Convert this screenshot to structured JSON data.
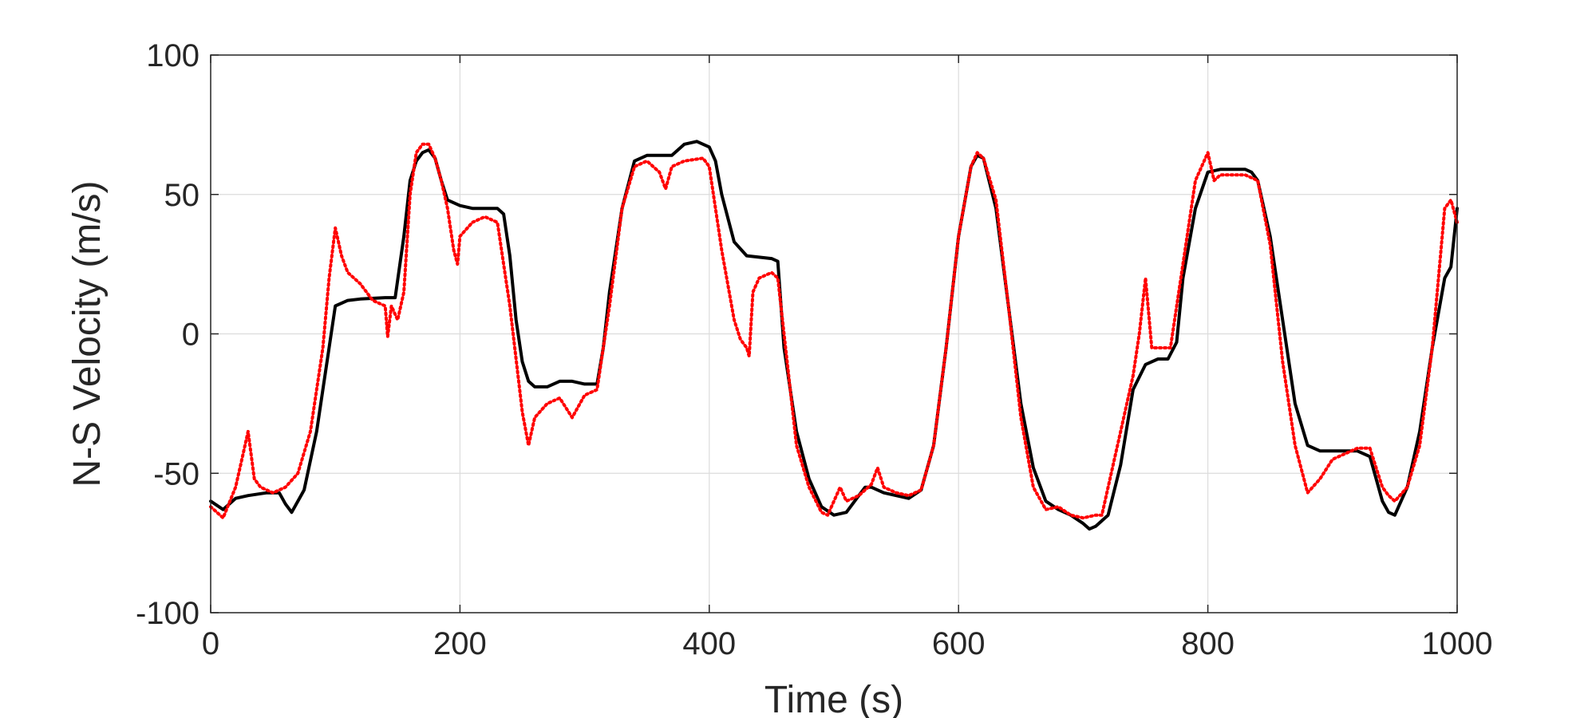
{
  "chart_data": {
    "type": "line",
    "xlabel": "Time (s)",
    "ylabel": "N-S Velocity (m/s)",
    "xlim": [
      0,
      1000
    ],
    "ylim": [
      -100,
      100
    ],
    "x_ticks": [
      0,
      200,
      400,
      600,
      800,
      1000
    ],
    "y_ticks": [
      -100,
      -50,
      0,
      50,
      100
    ],
    "x_tick_labels": [
      "0",
      "200",
      "400",
      "600",
      "800",
      "1000"
    ],
    "y_tick_labels": [
      "-100",
      "-50",
      "0",
      "50",
      "100"
    ],
    "grid": true,
    "legend": "none",
    "series": [
      {
        "style": "solid",
        "color": "#000000",
        "x": [
          0,
          10,
          20,
          30,
          45,
          55,
          60,
          65,
          75,
          85,
          95,
          100,
          110,
          120,
          140,
          148,
          155,
          160,
          165,
          170,
          175,
          180,
          185,
          190,
          200,
          210,
          230,
          235,
          240,
          245,
          250,
          255,
          260,
          270,
          280,
          290,
          300,
          310,
          315,
          320,
          330,
          340,
          350,
          360,
          370,
          380,
          390,
          400,
          405,
          410,
          420,
          430,
          450,
          455,
          460,
          470,
          480,
          490,
          500,
          510,
          520,
          525,
          530,
          540,
          550,
          560,
          570,
          580,
          590,
          600,
          610,
          615,
          620,
          630,
          640,
          650,
          660,
          670,
          680,
          690,
          700,
          705,
          710,
          720,
          730,
          740,
          750,
          760,
          768,
          775,
          780,
          790,
          800,
          810,
          830,
          835,
          840,
          850,
          860,
          870,
          880,
          890,
          920,
          925,
          930,
          935,
          940,
          945,
          950,
          960,
          970,
          980,
          990,
          995,
          1000
        ],
        "y": [
          -60,
          -63,
          -59,
          -58,
          -57,
          -57,
          -61,
          -64,
          -56,
          -35,
          -5,
          10,
          12,
          12.5,
          13,
          13,
          35,
          55,
          62,
          65,
          66,
          63,
          55,
          48,
          46,
          45,
          45,
          43,
          28,
          5,
          -10,
          -17,
          -19,
          -19,
          -17,
          -17,
          -18,
          -18,
          -5,
          15,
          45,
          62,
          64,
          64,
          64,
          68,
          69,
          67,
          62,
          50,
          33,
          28,
          27,
          26,
          -5,
          -35,
          -52,
          -62,
          -65,
          -64,
          -58,
          -55,
          -55,
          -57,
          -58,
          -59,
          -56,
          -40,
          -5,
          35,
          60,
          64,
          63,
          45,
          10,
          -25,
          -48,
          -60,
          -63,
          -65,
          -68,
          -70,
          -69,
          -65,
          -47,
          -20,
          -11,
          -9,
          -9,
          -3,
          20,
          45,
          58,
          59,
          59,
          58,
          55,
          35,
          5,
          -25,
          -40,
          -42,
          -42,
          -43,
          -44,
          -52,
          -60,
          -64,
          -65,
          -55,
          -35,
          -5,
          20,
          24,
          45
        ]
      },
      {
        "style": "dotted",
        "color": "#ff0000",
        "x": [
          0,
          10,
          20,
          25,
          30,
          35,
          40,
          50,
          60,
          70,
          80,
          90,
          95,
          100,
          105,
          110,
          120,
          130,
          140,
          142,
          145,
          150,
          155,
          160,
          165,
          170,
          175,
          180,
          185,
          190,
          195,
          198,
          200,
          210,
          220,
          230,
          240,
          250,
          255,
          260,
          270,
          280,
          290,
          300,
          310,
          320,
          330,
          340,
          350,
          360,
          365,
          370,
          380,
          395,
          400,
          405,
          410,
          420,
          425,
          430,
          432,
          435,
          440,
          450,
          455,
          460,
          470,
          480,
          490,
          495,
          500,
          505,
          510,
          520,
          530,
          535,
          540,
          550,
          560,
          570,
          580,
          590,
          600,
          610,
          615,
          620,
          630,
          640,
          650,
          660,
          670,
          680,
          690,
          700,
          710,
          715,
          720,
          730,
          740,
          745,
          750,
          755,
          760,
          765,
          770,
          780,
          790,
          800,
          805,
          810,
          820,
          830,
          840,
          850,
          860,
          870,
          880,
          890,
          900,
          910,
          920,
          925,
          930,
          935,
          940,
          945,
          950,
          960,
          970,
          980,
          985,
          990,
          995,
          1000
        ],
        "y": [
          -62,
          -66,
          -55,
          -45,
          -35,
          -52,
          -55,
          -57,
          -55,
          -50,
          -35,
          -5,
          20,
          38,
          28,
          22,
          18,
          12,
          10,
          -1,
          10,
          5,
          15,
          50,
          65,
          68,
          68,
          63,
          55,
          45,
          30,
          25,
          35,
          40,
          42,
          40,
          10,
          -28,
          -40,
          -30,
          -25,
          -23,
          -30,
          -22,
          -20,
          10,
          45,
          60,
          62,
          58,
          52,
          60,
          62,
          63,
          60,
          45,
          30,
          5,
          -2,
          -5,
          -8,
          15,
          20,
          22,
          20,
          0,
          -40,
          -55,
          -64,
          -65,
          -60,
          -55,
          -60,
          -58,
          -54,
          -48,
          -55,
          -57,
          -58,
          -56,
          -40,
          -5,
          35,
          60,
          65,
          63,
          48,
          10,
          -30,
          -55,
          -63,
          -62,
          -65,
          -66,
          -65,
          -65,
          -55,
          -35,
          -15,
          0,
          20,
          -5,
          -5,
          -5,
          -5,
          25,
          55,
          65,
          55,
          57,
          57,
          57,
          55,
          32,
          -10,
          -40,
          -57,
          -52,
          -45,
          -43,
          -41,
          -41,
          -41,
          -48,
          -55,
          -58,
          -60,
          -55,
          -40,
          -5,
          20,
          45,
          48,
          40
        ]
      }
    ]
  }
}
